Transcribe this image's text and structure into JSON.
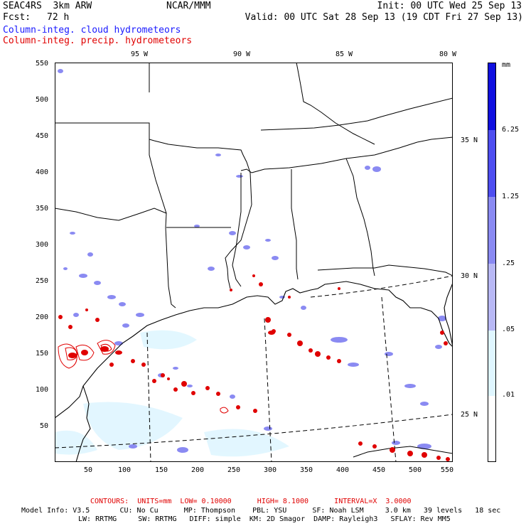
{
  "header": {
    "model": "SEAC4RS  3km ARW",
    "fcst_label": "Fcst:",
    "fcst_value": "72 h",
    "org": "NCAR/MMM",
    "init": "Init: 00 UTC Wed 25 Sep 13",
    "valid": "Valid: 00 UTC Sat 28 Sep 13 (19 CDT Fri 27 Sep 13)",
    "field1": "Column-integ. cloud hydrometeors",
    "field2": "Column-integ. precip. hydrometeors"
  },
  "map": {
    "lon_labels": [
      "95 W",
      "90 W",
      "85 W",
      "80 W"
    ],
    "lat_labels": [
      "35 N",
      "30 N",
      "25 N"
    ],
    "y_ticks": [
      "550",
      "500",
      "450",
      "400",
      "350",
      "300",
      "250",
      "200",
      "150",
      "100",
      "50"
    ],
    "x_ticks": [
      "50",
      "100",
      "150",
      "200",
      "250",
      "300",
      "350",
      "400",
      "450",
      "500",
      "550"
    ]
  },
  "legend": {
    "unit": "mm",
    "levels": [
      "6.25",
      "1.25",
      ".25",
      ".05",
      ".01"
    ],
    "colors": [
      "#1010e0",
      "#4e4ef0",
      "#8a8af2",
      "#b8b8f5",
      "#dff6ff",
      "#ffffff"
    ]
  },
  "footer": {
    "contours": "CONTOURS:  UNITS=mm  LOW= 0.10000      HIGH= 8.1000      INTERVAL=X  3.0000",
    "info1": "Model Info: V3.5       CU: No Cu      MP: Thompson    PBL: YSU      SF: Noah LSM     3.0 km   39 levels   18 sec",
    "info2": "LW: RRTMG     SW: RRTMG   DIFF: simple  KM: 2D Smagor  DAMP: Rayleigh3   SFLAY: Rev MM5"
  },
  "colors": {
    "precip": "#e00000",
    "cloud_light": "#8a8af2",
    "cloud_faint": "#dff6ff"
  }
}
